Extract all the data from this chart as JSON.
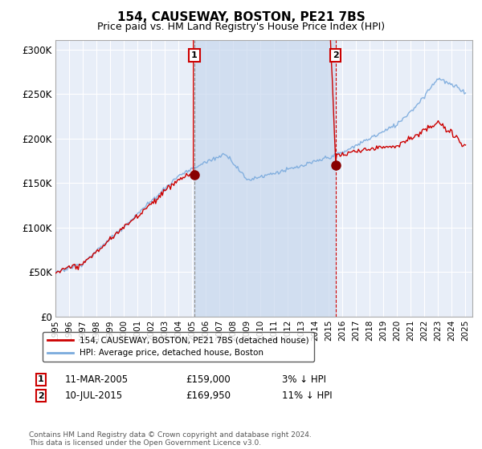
{
  "title": "154, CAUSEWAY, BOSTON, PE21 7BS",
  "subtitle": "Price paid vs. HM Land Registry's House Price Index (HPI)",
  "ylim": [
    0,
    310000
  ],
  "yticks": [
    0,
    50000,
    100000,
    150000,
    200000,
    250000,
    300000
  ],
  "ytick_labels": [
    "£0",
    "£50K",
    "£100K",
    "£150K",
    "£200K",
    "£250K",
    "£300K"
  ],
  "background_color": "#ffffff",
  "plot_bg_color": "#e8eef8",
  "grid_color": "#ffffff",
  "shade_color": "#d0ddf0",
  "legend_label_red": "154, CAUSEWAY, BOSTON, PE21 7BS (detached house)",
  "legend_label_blue": "HPI: Average price, detached house, Boston",
  "transaction1_date": "11-MAR-2005",
  "transaction1_price": "£159,000",
  "transaction1_hpi": "3% ↓ HPI",
  "transaction2_date": "10-JUL-2015",
  "transaction2_price": "£169,950",
  "transaction2_hpi": "11% ↓ HPI",
  "footer": "Contains HM Land Registry data © Crown copyright and database right 2024.\nThis data is licensed under the Open Government Licence v3.0.",
  "red_color": "#cc0000",
  "blue_color": "#7aaadd",
  "vline1_x": 2005.17,
  "vline2_x": 2015.5,
  "marker1_x": 2005.17,
  "marker1_y": 159000,
  "marker2_x": 2015.5,
  "marker2_y": 169950,
  "xlim_start": 1995,
  "xlim_end": 2025.5
}
